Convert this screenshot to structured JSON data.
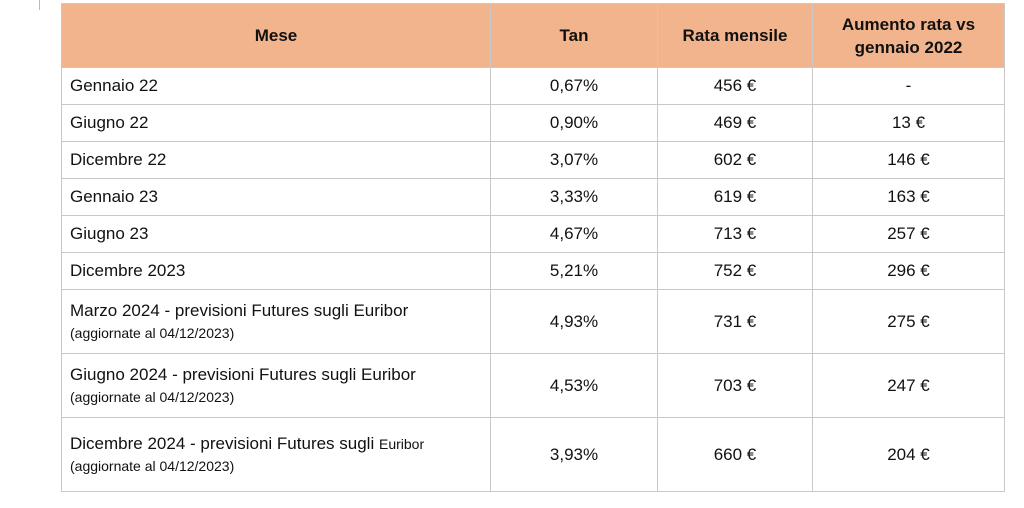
{
  "table": {
    "columns": [
      "Mese",
      "Tan",
      "Rata mensile",
      "Aumento rata vs gennaio 2022"
    ],
    "rows": [
      {
        "mese": "Gennaio 22",
        "tan": "0,67%",
        "rata": "456 €",
        "aumento": "-"
      },
      {
        "mese": "Giugno 22",
        "tan": "0,90%",
        "rata": "469 €",
        "aumento": "13 €"
      },
      {
        "mese": "Dicembre 22",
        "tan": "3,07%",
        "rata": "602 €",
        "aumento": "146 €"
      },
      {
        "mese": "Gennaio 23",
        "tan": "3,33%",
        "rata": "619 €",
        "aumento": "163 €"
      },
      {
        "mese": "Giugno 23",
        "tan": "4,67%",
        "rata": "713 €",
        "aumento": "257 €"
      },
      {
        "mese": "Dicembre 2023",
        "tan": "5,21%",
        "rata": "752 €",
        "aumento": "296 €"
      },
      {
        "mese": "Marzo 2024 - previsioni Futures sugli Euribor",
        "nota": "(aggiornate al 04/12/2023)",
        "tan": "4,93%",
        "rata": "731 €",
        "aumento": "275 €"
      },
      {
        "mese": "Giugno 2024 - previsioni Futures sugli Euribor",
        "nota": "(aggiornate al 04/12/2023)",
        "tan": "4,53%",
        "rata": "703 €",
        "aumento": "247 €"
      },
      {
        "mese": "Dicembre 2024 - previsioni Futures sugli",
        "mese_small": "Euribor",
        "nota": "(aggiornate al 04/12/2023)",
        "tan": "3,93%",
        "rata": "660 €",
        "aumento": "204 €"
      }
    ]
  }
}
